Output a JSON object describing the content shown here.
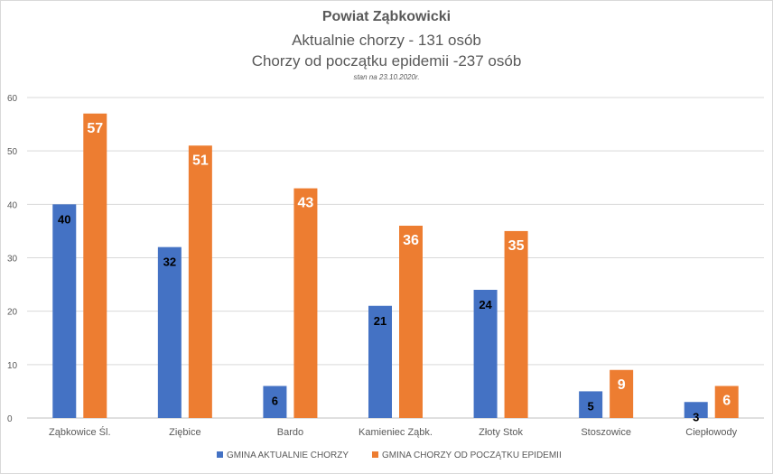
{
  "header": {
    "title": "Powiat Ząbkowicki",
    "line2": "Aktualnie chorzy - 131 osób",
    "line3": "Chorzy od początku epidemii -237 osób",
    "date_note": "stan na 23.10.2020r."
  },
  "chart_data": {
    "type": "bar",
    "title": "Powiat Ząbkowicki",
    "subtitle": "Aktualnie chorzy - 131 osób / Chorzy od początku epidemii -237 osób",
    "categories": [
      "Ząbkowice Śl.",
      "Ziębice",
      "Bardo",
      "Kamieniec Ząbk.",
      "Złoty Stok",
      "Stoszowice",
      "Ciepłowody"
    ],
    "series": [
      {
        "name": "GMINA AKTUALNIE CHORZY",
        "values": [
          40,
          32,
          6,
          21,
          24,
          5,
          3
        ],
        "color": "#4472c4",
        "label_color": "#000000"
      },
      {
        "name": "GMINA CHORZY OD POCZĄTKU EPIDEMII",
        "values": [
          57,
          51,
          43,
          36,
          35,
          9,
          6
        ],
        "color": "#ed7d31",
        "label_color": "#ffffff"
      }
    ],
    "ylim": [
      0,
      60
    ],
    "yticks": [
      0,
      10,
      20,
      30,
      40,
      50,
      60
    ],
    "grid": true,
    "legend": "bottom",
    "xlabel": "",
    "ylabel": ""
  }
}
